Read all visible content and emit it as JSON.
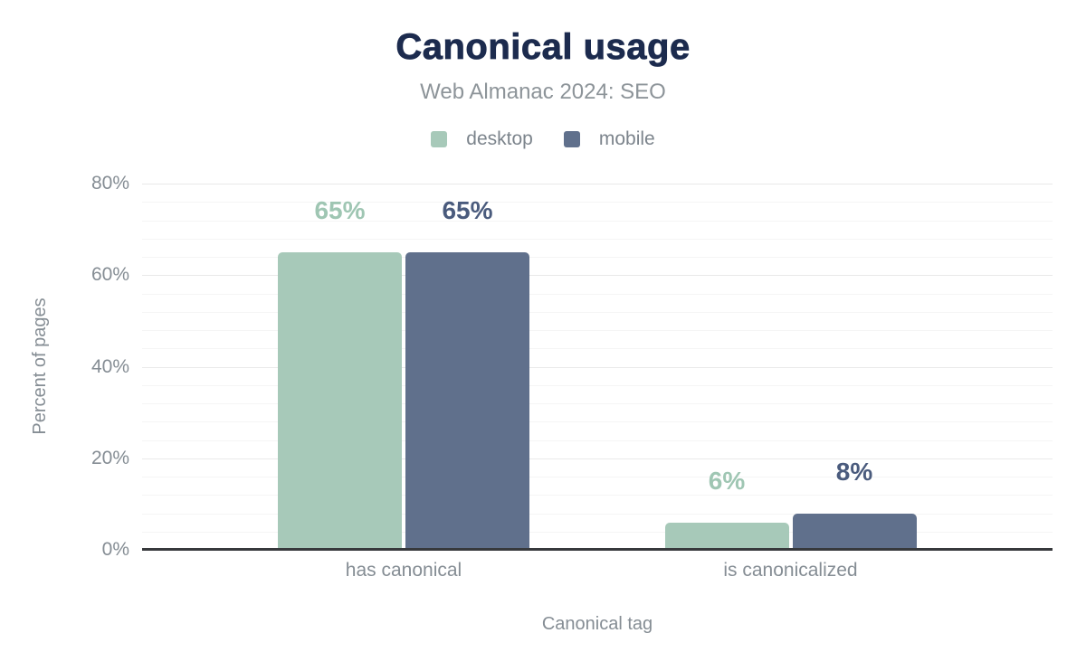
{
  "header": {
    "title": "Canonical usage",
    "subtitle": "Web Almanac 2024: SEO"
  },
  "legend": [
    {
      "label": "desktop",
      "color": "#a7c9b9"
    },
    {
      "label": "mobile",
      "color": "#60708c"
    }
  ],
  "chart_data": {
    "type": "bar",
    "title": "Canonical usage",
    "subtitle": "Web Almanac 2024: SEO",
    "categories": [
      "has canonical",
      "is canonicalized"
    ],
    "series": [
      {
        "name": "desktop",
        "color": "#a7c9b9",
        "label_color": "#9fc6b3",
        "values": [
          65,
          6
        ],
        "labels": [
          "65%",
          "6%"
        ]
      },
      {
        "name": "mobile",
        "color": "#60708c",
        "label_color": "#4a5b7d",
        "values": [
          65,
          8
        ],
        "labels": [
          "65%",
          "8%"
        ]
      }
    ],
    "xlabel": "Canonical tag",
    "ylabel": "Percent of pages",
    "ylim": [
      0,
      80
    ],
    "ytick_interval": 20,
    "minor_tick_interval": 4,
    "yticks": [
      "0%",
      "20%",
      "40%",
      "60%",
      "80%"
    ],
    "grid": true,
    "legend_position": "top"
  },
  "colors": {
    "title": "#1c2b4e",
    "subtitle": "#8d9499",
    "axis_text": "#858d94",
    "axis_line": "#37393c",
    "grid_major": "#e9e9e9",
    "grid_minor": "#f5f5f5",
    "background": "#ffffff"
  }
}
